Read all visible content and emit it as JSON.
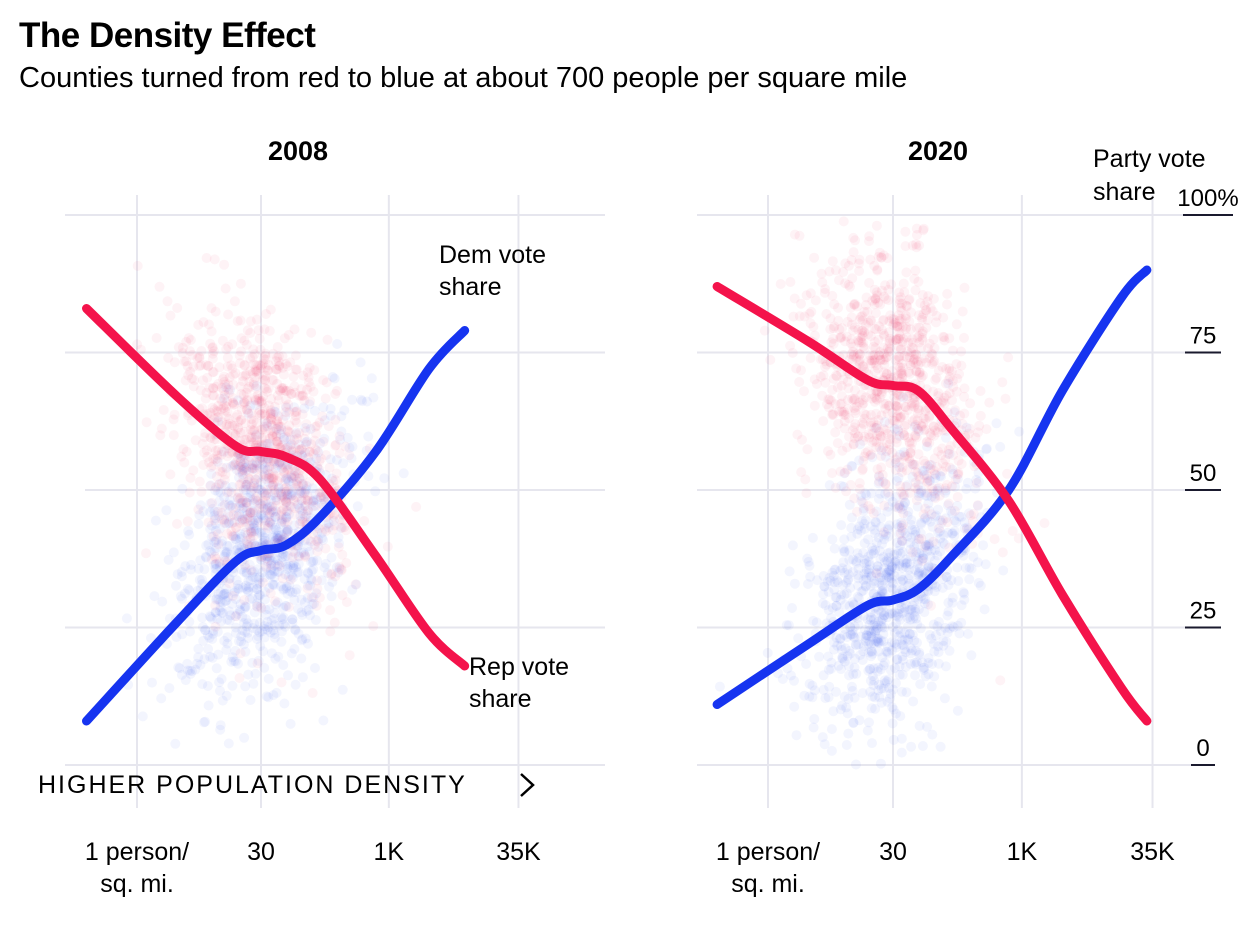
{
  "title": "The Density Effect",
  "subtitle": "Counties turned from red to blue at about 700 people per square mile",
  "colors": {
    "dem": "#1634f0",
    "rep": "#f4134b",
    "grid": "#e6e6ee",
    "axis": "#1a1a2e"
  },
  "chart_data": [
    {
      "type": "scatter",
      "title": "2008",
      "x_scale": "log",
      "x_unit": "people per square mile",
      "xlim": [
        0.25,
        150000
      ],
      "ylim": [
        0,
        100
      ],
      "x_ticks": [
        {
          "value": 1,
          "label": [
            "1 person/",
            "sq. mi."
          ]
        },
        {
          "value": 30,
          "label": [
            "30"
          ]
        },
        {
          "value": 1000,
          "label": [
            "1K"
          ]
        },
        {
          "value": 35000,
          "label": [
            "35K"
          ]
        }
      ],
      "axis_note": "HIGHER POPULATION DENSITY",
      "series": [
        {
          "key": "dem",
          "points": [
            [
              0.25,
              8
            ],
            [
              3,
              26
            ],
            [
              15,
              37
            ],
            [
              30,
              39
            ],
            [
              60,
              40
            ],
            [
              150,
              45
            ],
            [
              700,
              57
            ],
            [
              3000,
              72
            ],
            [
              8000,
              79
            ]
          ]
        },
        {
          "key": "rep",
          "points": [
            [
              0.25,
              83
            ],
            [
              3,
              67
            ],
            [
              15,
              58
            ],
            [
              30,
              57
            ],
            [
              60,
              56
            ],
            [
              150,
              52
            ],
            [
              700,
              38
            ],
            [
              3000,
              24
            ],
            [
              8000,
              18
            ]
          ]
        }
      ],
      "annotations": [
        {
          "text": [
            "Dem vote",
            "share"
          ],
          "series": "dem"
        },
        {
          "text": [
            "Rep vote",
            "share"
          ],
          "series": "rep"
        }
      ]
    },
    {
      "type": "scatter",
      "title": "2020",
      "x_scale": "log",
      "x_unit": "people per square mile",
      "xlim": [
        0.25,
        150000
      ],
      "ylim": [
        0,
        100
      ],
      "x_ticks": [
        {
          "value": 1,
          "label": [
            "1 person/",
            "sq. mi."
          ]
        },
        {
          "value": 30,
          "label": [
            "30"
          ]
        },
        {
          "value": 1000,
          "label": [
            "1K"
          ]
        },
        {
          "value": 35000,
          "label": [
            "35K"
          ]
        }
      ],
      "y_ticks": [
        {
          "value": 100,
          "label": "100%"
        },
        {
          "value": 75,
          "label": "75"
        },
        {
          "value": 50,
          "label": "50"
        },
        {
          "value": 25,
          "label": "25"
        },
        {
          "value": 0,
          "label": "0"
        }
      ],
      "y_axis_label": [
        "Party vote",
        "share"
      ],
      "series": [
        {
          "key": "dem",
          "points": [
            [
              0.25,
              11
            ],
            [
              3,
              22
            ],
            [
              15,
              29
            ],
            [
              30,
              30
            ],
            [
              60,
              32
            ],
            [
              150,
              38
            ],
            [
              700,
              50
            ],
            [
              3000,
              68
            ],
            [
              15000,
              85
            ],
            [
              30000,
              90
            ]
          ]
        },
        {
          "key": "rep",
          "points": [
            [
              0.25,
              87
            ],
            [
              3,
              77
            ],
            [
              15,
              70
            ],
            [
              30,
              69
            ],
            [
              60,
              68
            ],
            [
              150,
              61
            ],
            [
              700,
              48
            ],
            [
              3000,
              31
            ],
            [
              15000,
              14
            ],
            [
              30000,
              8
            ]
          ]
        }
      ]
    }
  ]
}
